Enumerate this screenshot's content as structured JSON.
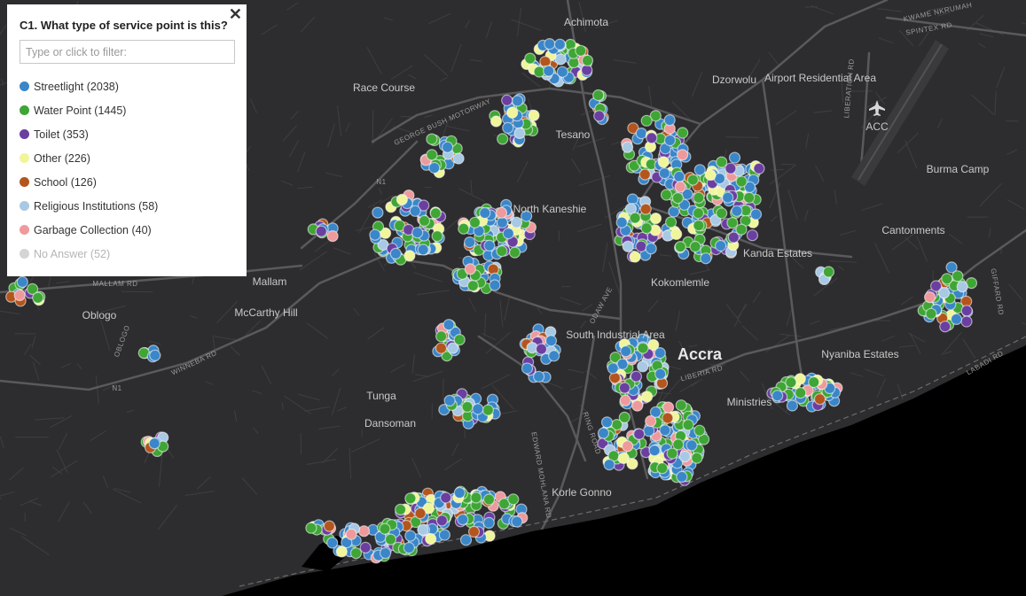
{
  "filter_panel": {
    "title": "C1. What type of service point is this?",
    "close_symbol": "✕",
    "filter_placeholder": "Type or click to filter:",
    "categories": [
      {
        "label": "Streetlight (2038)",
        "color": "#3a86c8",
        "muted": false
      },
      {
        "label": "Water Point (1445)",
        "color": "#3fa535",
        "muted": false
      },
      {
        "label": "Toilet (353)",
        "color": "#6a3fa0",
        "muted": false
      },
      {
        "label": "Other (226)",
        "color": "#f0f59a",
        "muted": false
      },
      {
        "label": "School (126)",
        "color": "#b3551d",
        "muted": false
      },
      {
        "label": "Religious Institutions (58)",
        "color": "#a8c8e4",
        "muted": false
      },
      {
        "label": "Garbage Collection (40)",
        "color": "#ee9a9c",
        "muted": false
      },
      {
        "label": "No Answer (52)",
        "color": "#d4d4d4",
        "muted": true
      }
    ]
  },
  "map": {
    "colors": {
      "land": "#2d2d2f",
      "sea": "#000000",
      "road_major": "#5a5a5c",
      "road_minor": "#3f3f41",
      "label": "#c9c9c9"
    },
    "place_labels": [
      "Achimota",
      "Race Course",
      "Dzorwolu",
      "Airport Residential Area",
      "Tesano",
      "North Kaneshie",
      "Burma Camp",
      "Cantonments",
      "Kanda Estates",
      "Kokomlemle",
      "Mallam",
      "McCarthy Hill",
      "Oblogo",
      "South Industrial Area",
      "Accra",
      "Nyaniba Estates",
      "Tunga",
      "Dansoman",
      "Korle Gonno",
      "Ministries"
    ],
    "city_label": "Accra",
    "road_labels": [
      "N1",
      "N1",
      "KWAME NKRUMAH",
      "SPINTEX RD",
      "GEORGE BUSH MOTORWAY",
      "WINNEBA RD",
      "MALLAM RD",
      "OBLOGO",
      "LIBERATION RD",
      "GIFFARD RD",
      "LABADI RD",
      "RING ROAD",
      "ODAW AVE",
      "EDWARD MOHLANA RD",
      "LIBERIA RD"
    ],
    "airport_label": "ACC",
    "icons": [
      "airplane-icon"
    ]
  }
}
